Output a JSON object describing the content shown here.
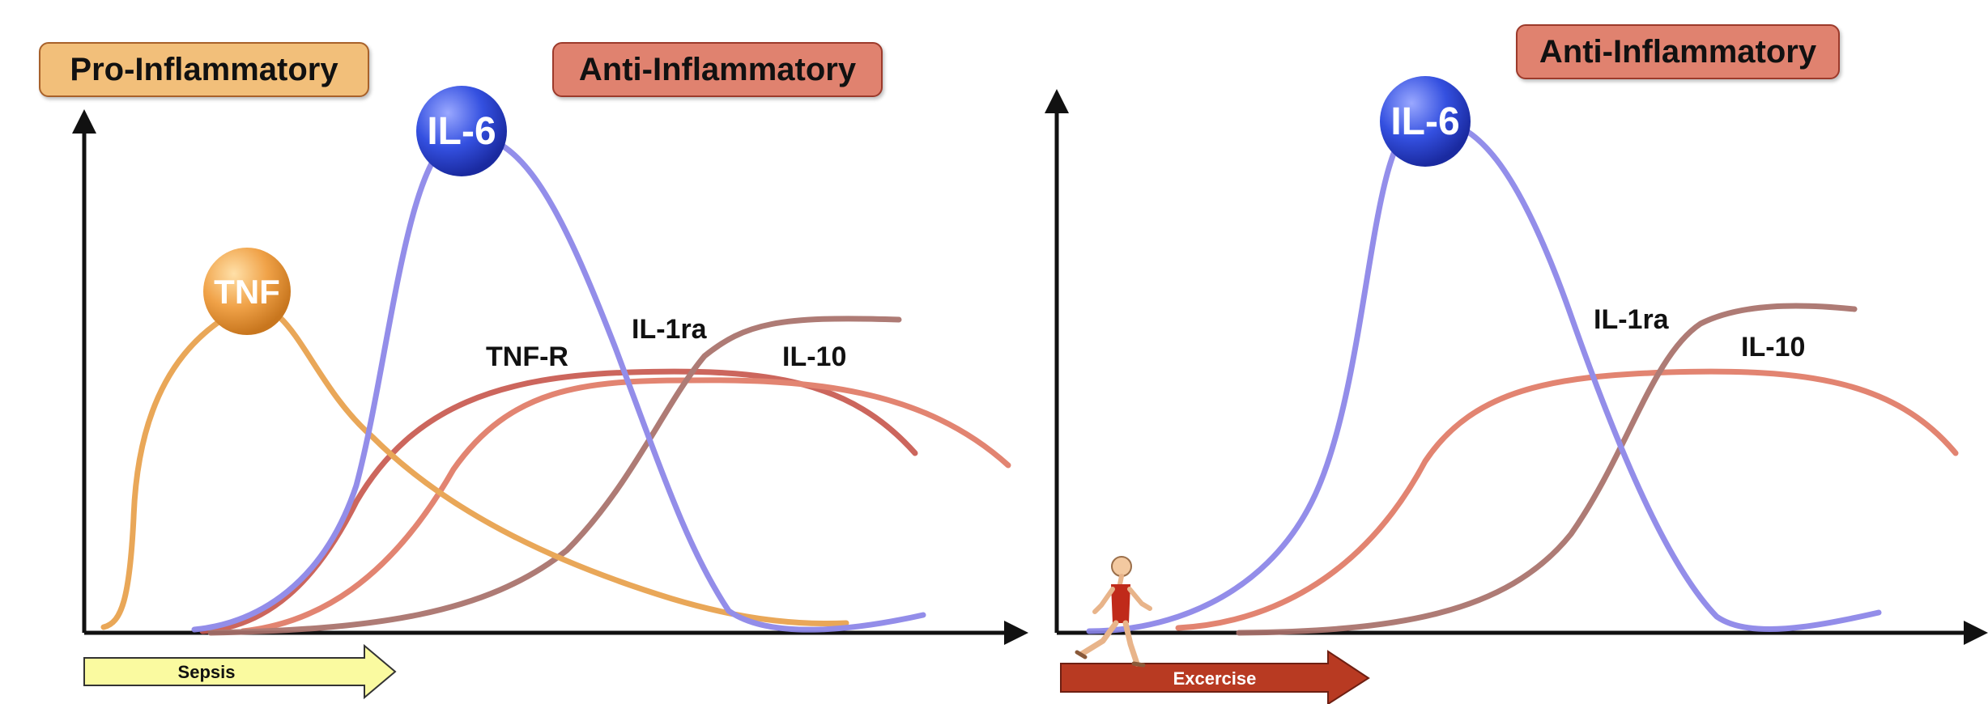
{
  "colors": {
    "tnf": "#e8a04a",
    "il6": "#8a84e8",
    "tnfr": "#c85a50",
    "il1ra": "#a8706a",
    "il10": "#e07a66",
    "axis": "#111111",
    "sepsis_arrow": "#fafaa0",
    "exercise_arrow": "#b83a22"
  },
  "left_panel": {
    "pro_box": "Pro-Inflammatory",
    "anti_box": "Anti-Inflammatory",
    "bubbles": {
      "tnf": "TNF",
      "il6": "IL-6"
    },
    "labels": {
      "tnfr": "TNF-R",
      "il1ra": "IL-1ra",
      "il10": "IL-10"
    },
    "arrow": "Sepsis"
  },
  "right_panel": {
    "anti_box": "Anti-Inflammatory",
    "bubbles": {
      "il6": "IL-6"
    },
    "labels": {
      "il1ra": "IL-1ra",
      "il10": "IL-10"
    },
    "arrow": "Excercise",
    "runner": "runner-figure"
  }
}
